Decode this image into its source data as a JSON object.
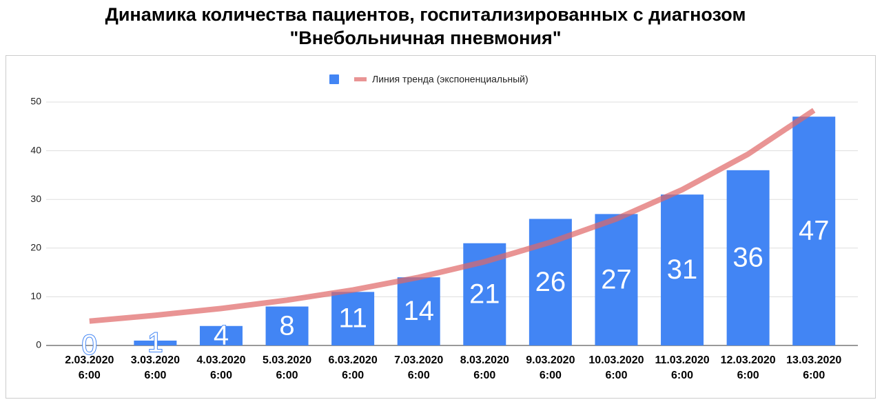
{
  "chart_data": {
    "type": "bar",
    "title": "Динамика количества пациентов, госпитализированных с диагнозом\n\"Внебольничная пневмония\"",
    "categories": [
      "2.03.2020 6:00",
      "3.03.2020 6:00",
      "4.03.2020 6:00",
      "5.03.2020 6:00",
      "6.03.2020 6:00",
      "7.03.2020 6:00",
      "8.03.2020 6:00",
      "9.03.2020 6:00",
      "10.03.2020 6:00",
      "11.03.2020 6:00",
      "12.03.2020 6:00",
      "13.03.2020 6:00"
    ],
    "series": [
      {
        "type": "bar",
        "color": "#4285f4",
        "values": [
          0,
          1,
          4,
          8,
          11,
          14,
          21,
          26,
          27,
          31,
          36,
          47
        ]
      },
      {
        "type": "line",
        "name": "Линия тренда (экспоненциальный)",
        "color": "#e06666",
        "values": [
          5.0,
          6.2,
          7.6,
          9.3,
          11.4,
          14.0,
          17.2,
          21.2,
          26.0,
          32.0,
          39.3,
          48.3
        ]
      }
    ],
    "ylim": [
      0,
      50
    ],
    "yticks": [
      0,
      10,
      20,
      30,
      40,
      50
    ],
    "grid": true,
    "legend": "top"
  }
}
